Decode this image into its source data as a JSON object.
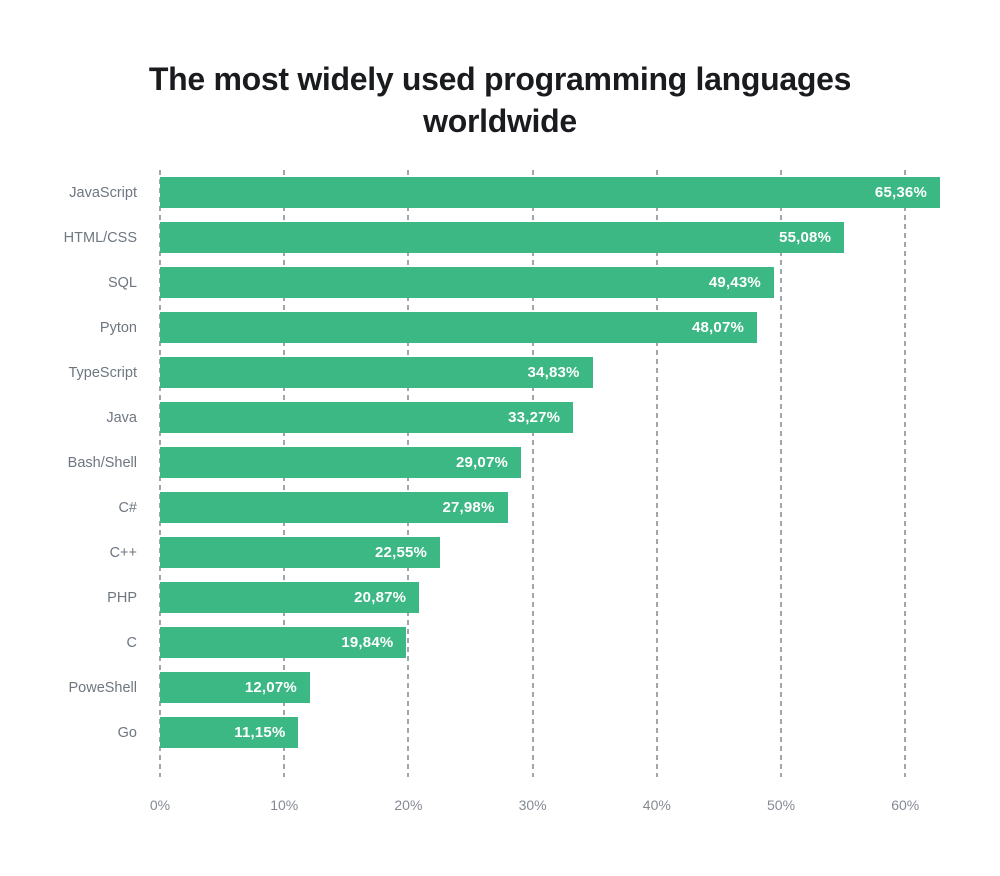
{
  "title": "The most widely used programming languages worldwide",
  "colors": {
    "background": "#FFFFFF",
    "bar": "#3CB884",
    "title_text": "#1A1B1E",
    "category_label": "#6E7680",
    "axis_label": "#848A93",
    "gridline": "#A2A6AB",
    "value_text": "#FFFFFF"
  },
  "chart_data": {
    "type": "bar",
    "orientation": "horizontal",
    "title": "The most widely used programming languages worldwide",
    "categories": [
      "JavaScript",
      "HTML/CSS",
      "SQL",
      "Pyton",
      "TypeScript",
      "Java",
      "Bash/Shell",
      "C#",
      "C++",
      "PHP",
      "C",
      "PoweShell",
      "Go"
    ],
    "values": [
      65.36,
      55.08,
      49.43,
      48.07,
      34.83,
      33.27,
      29.07,
      27.98,
      22.55,
      20.87,
      19.84,
      12.07,
      11.15
    ],
    "value_labels": [
      "65,36%",
      "55,08%",
      "49,43%",
      "48,07%",
      "34,83%",
      "33,27%",
      "29,07%",
      "27,98%",
      "22,55%",
      "20,87%",
      "19,84%",
      "12,07%",
      "11,15%"
    ],
    "xlabel": "",
    "ylabel": "",
    "x_ticks": [
      "0%",
      "10%",
      "20%",
      "30%",
      "40%",
      "50%",
      "60%"
    ],
    "x_tick_values": [
      0,
      10,
      20,
      30,
      40,
      50,
      60
    ],
    "xlim": [
      0,
      62.8
    ],
    "grid": "dashed-vertical",
    "legend": "none",
    "value_label_position": "inside-end"
  }
}
